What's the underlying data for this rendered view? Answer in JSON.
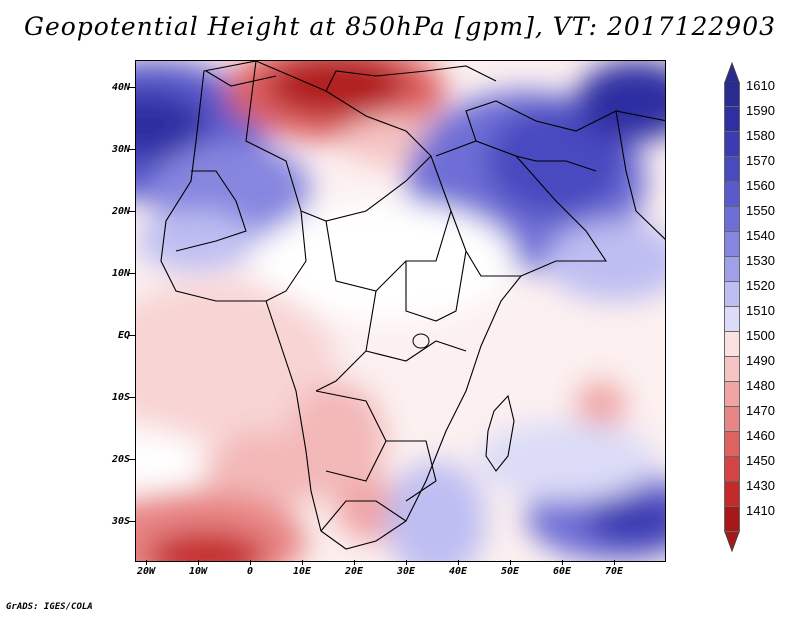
{
  "title": "Geopotential Height at 850hPa [gpm], VT: 2017122903",
  "footer": "GrADS: IGES/COLA",
  "lat_labels": [
    "40N",
    "30N",
    "20N",
    "10N",
    "EQ",
    "10S",
    "20S",
    "30S"
  ],
  "lon_labels": [
    "20W",
    "10W",
    "0",
    "10E",
    "20E",
    "30E",
    "40E",
    "50E",
    "60E",
    "70E"
  ],
  "colorbar": {
    "labels": [
      "1610",
      "1590",
      "1580",
      "1570",
      "1560",
      "1550",
      "1540",
      "1530",
      "1520",
      "1510",
      "1500",
      "1490",
      "1480",
      "1470",
      "1460",
      "1450",
      "1430",
      "1410"
    ],
    "colors": [
      "#2a2a90",
      "#2f2fa3",
      "#3b3bb2",
      "#4a4ac0",
      "#5a5acc",
      "#6e6ed6",
      "#8686e0",
      "#a0a0ea",
      "#bebef2",
      "#dcdcf8",
      "#fbe2e2",
      "#f6c4c4",
      "#f0a4a4",
      "#e88484",
      "#de6262",
      "#d44444",
      "#c42a2a",
      "#a81818"
    ]
  }
}
